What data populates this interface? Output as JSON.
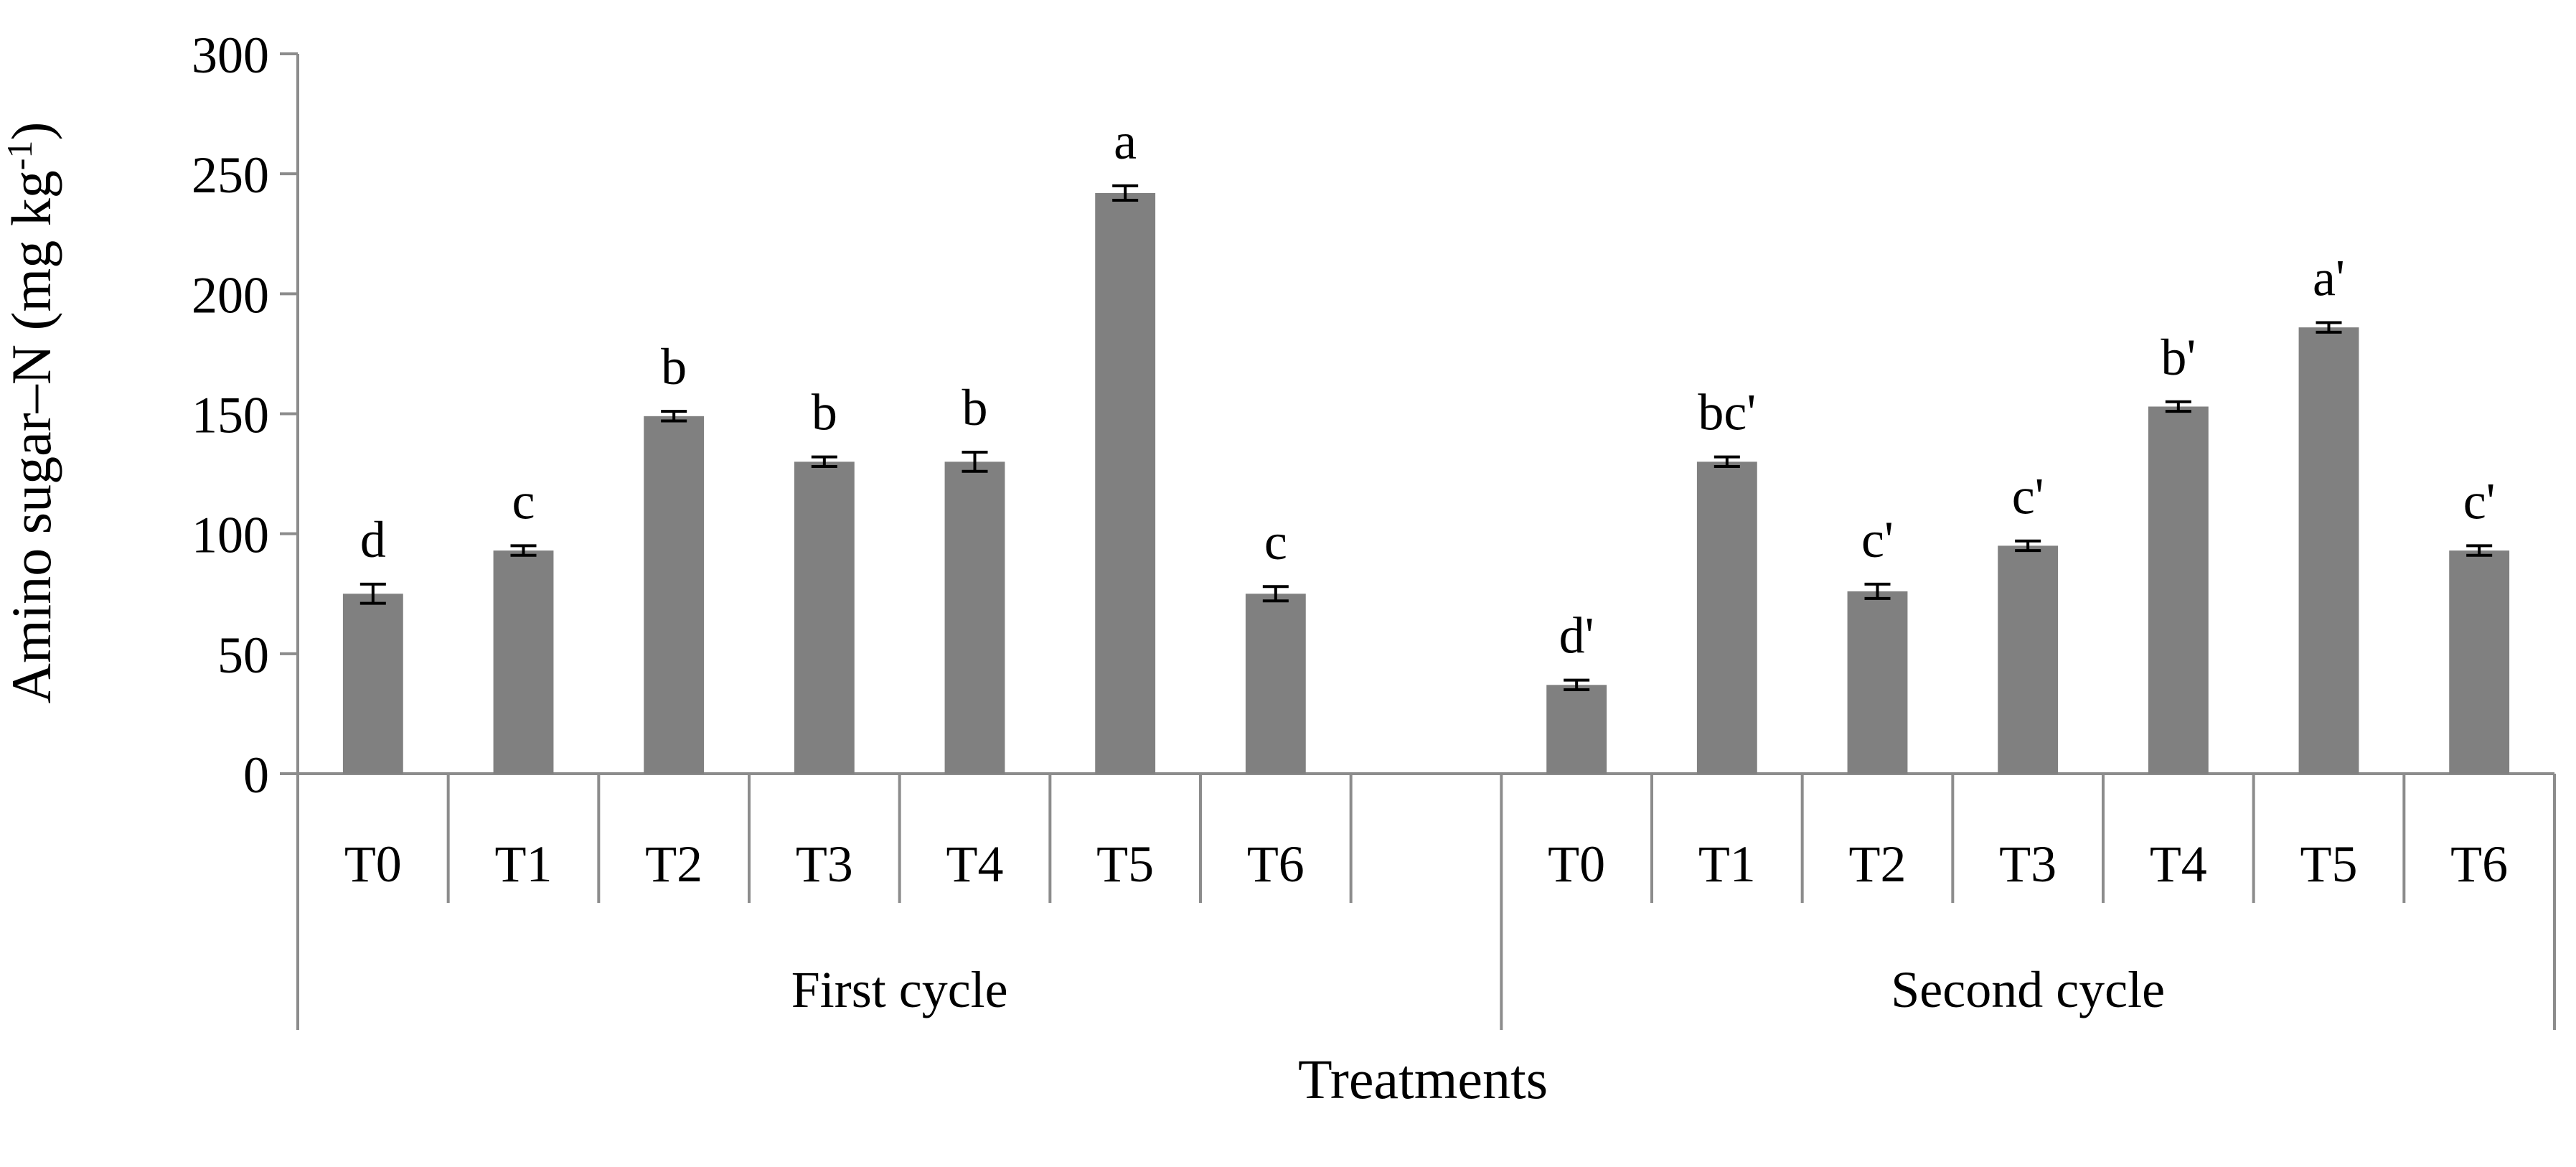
{
  "chart_data": {
    "type": "bar",
    "title": "",
    "ylabel": "Amino sugar–N (mg kg",
    "ylabel_superscript": "-1",
    "ylabel_suffix": ")",
    "xlabel": "Treatments",
    "ylim": [
      0,
      300
    ],
    "yticks": [
      0,
      50,
      100,
      150,
      200,
      250,
      300
    ],
    "bar_color": "#808080",
    "axis_color": "#8c8c8c",
    "groups": [
      {
        "name": "First cycle",
        "categories": [
          "T0",
          "T1",
          "T2",
          "T3",
          "T4",
          "T5",
          "T6",
          ""
        ],
        "values": [
          75,
          93,
          149,
          130,
          130,
          242,
          75,
          null
        ],
        "errors": [
          4,
          2,
          2,
          2,
          4,
          3,
          3,
          null
        ],
        "letters": [
          "d",
          "c",
          "b",
          "b",
          "b",
          "a",
          "c",
          ""
        ]
      },
      {
        "name": "Second cycle",
        "categories": [
          "T0",
          "T1",
          "T2",
          "T3",
          "T4",
          "T5",
          "T6"
        ],
        "values": [
          37,
          130,
          76,
          95,
          153,
          186,
          93
        ],
        "errors": [
          2,
          2,
          3,
          2,
          2,
          2,
          2
        ],
        "letters": [
          "d'",
          "bc'",
          "c'",
          "c'",
          "b'",
          "a'",
          "c'"
        ]
      }
    ]
  }
}
